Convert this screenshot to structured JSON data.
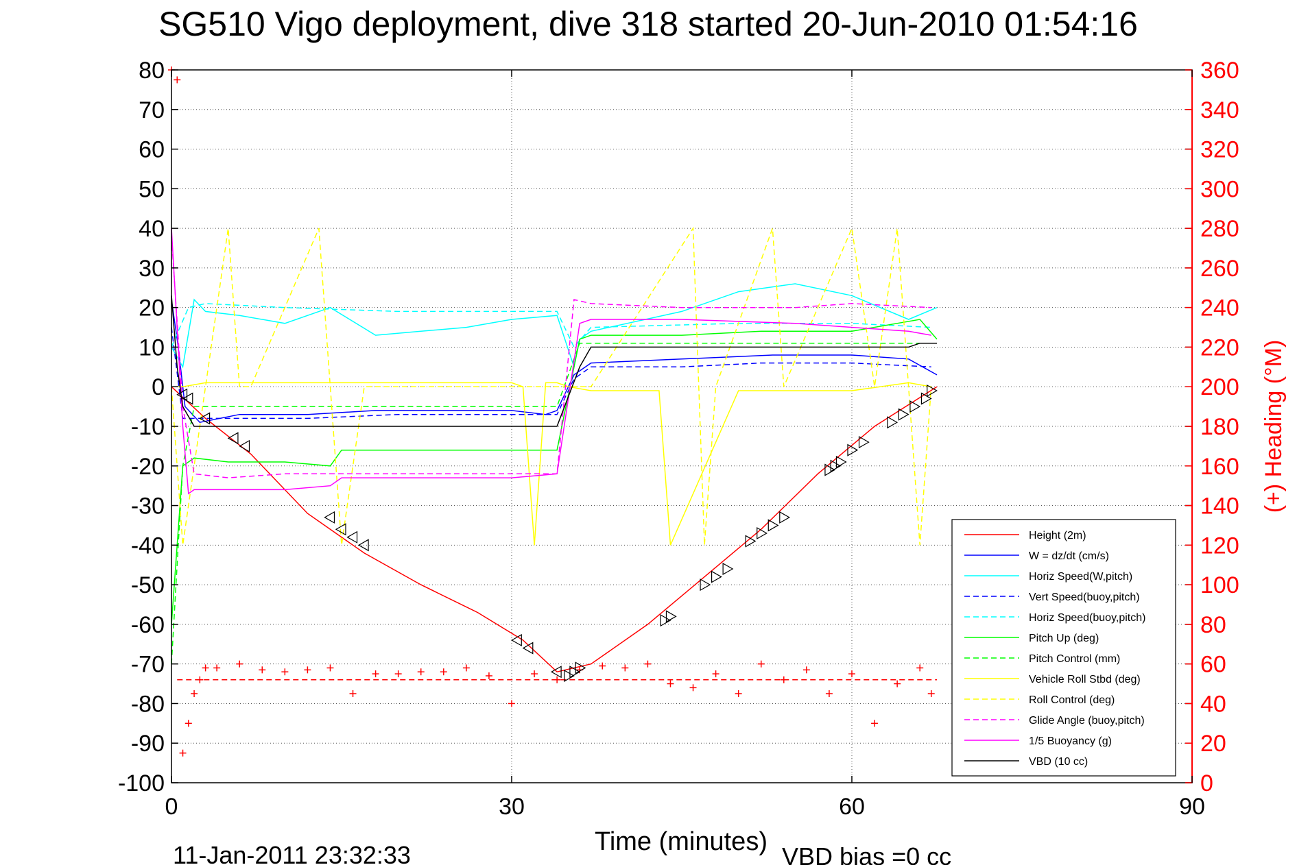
{
  "chart_data": {
    "type": "line",
    "title": "SG510 Vigo deployment, dive 318 started 20-Jun-2010 01:54:16",
    "xlabel": "Time (minutes)",
    "ylabel_right": "(+) Heading (°M)",
    "footer_left": "11-Jan-2011 23:32:33",
    "footer_right": "VBD bias =0 cc",
    "xlim": [
      0,
      90
    ],
    "ylim": [
      -100,
      80
    ],
    "ylim_right": [
      0,
      360
    ],
    "x_ticks": [
      0,
      30,
      60,
      90
    ],
    "y_ticks": [
      80,
      70,
      60,
      50,
      40,
      30,
      20,
      10,
      0,
      -10,
      -20,
      -30,
      -40,
      -50,
      -60,
      -70,
      -80,
      -90,
      -100
    ],
    "y_ticks_right": [
      360,
      340,
      320,
      300,
      280,
      260,
      240,
      220,
      200,
      180,
      160,
      140,
      120,
      100,
      80,
      60,
      40,
      20,
      0
    ],
    "grid": true,
    "legend_position": "lower-right",
    "colors": {
      "red": "#ff0000",
      "blue": "#0000ff",
      "cyan": "#00ffff",
      "green": "#00ff00",
      "yellow": "#ffff00",
      "magenta": "#ff00ff",
      "black": "#000000"
    },
    "series": [
      {
        "name": "Height (2m)",
        "color": "#ff0000",
        "dash": false,
        "x": [
          0,
          3,
          7,
          12,
          17,
          22,
          27,
          31,
          34,
          37,
          42,
          47,
          52,
          57,
          62,
          67.5
        ],
        "y": [
          0,
          -8,
          -17,
          -32,
          -42,
          -50,
          -57,
          -64,
          -72,
          -70,
          -60,
          -48,
          -36,
          -22,
          -10,
          0
        ]
      },
      {
        "name": "W = dz/dt (cm/s)",
        "color": "#0000ff",
        "dash": false,
        "x": [
          0,
          0.6,
          1.2,
          2.5,
          6,
          12,
          18,
          24,
          30,
          33,
          34,
          35.5,
          37,
          45,
          53,
          60,
          65,
          67.5
        ],
        "y": [
          22,
          10,
          -5,
          -9,
          -7,
          -7,
          -6,
          -6,
          -6,
          -7,
          -6,
          3,
          6,
          7,
          8,
          8,
          7,
          3
        ]
      },
      {
        "name": "Horiz Speed(W,pitch)",
        "color": "#00ffff",
        "dash": false,
        "x": [
          0,
          1,
          2,
          3,
          6,
          10,
          14,
          18,
          22,
          26,
          30,
          34,
          35.5,
          36,
          37,
          45,
          50,
          55,
          60,
          65,
          67.5
        ],
        "y": [
          10,
          5,
          22,
          19,
          18,
          16,
          20,
          13,
          14,
          15,
          17,
          18,
          5,
          12,
          14,
          19,
          24,
          26,
          23,
          17,
          20
        ]
      },
      {
        "name": "Vert Speed(buoy,pitch)",
        "color": "#0000ff",
        "dash": true,
        "x": [
          0,
          1,
          2,
          5,
          12,
          20,
          30,
          34,
          35.5,
          37,
          45,
          52,
          60,
          67
        ],
        "y": [
          15,
          -8,
          -8,
          -8,
          -8,
          -7,
          -7,
          -7,
          2,
          5,
          5,
          6,
          6,
          5
        ]
      },
      {
        "name": "Horiz Speed(buoy,pitch)",
        "color": "#00ffff",
        "dash": true,
        "x": [
          0,
          1.5,
          3,
          10,
          20,
          30,
          34,
          35.5,
          37,
          50,
          60,
          67
        ],
        "y": [
          10,
          20,
          21,
          20,
          19,
          19,
          19,
          10,
          15,
          16,
          16,
          15
        ]
      },
      {
        "name": "Pitch Up (deg)",
        "color": "#00ff00",
        "dash": false,
        "x": [
          0,
          1,
          2,
          5,
          10,
          14,
          15,
          20,
          30,
          34,
          36,
          37,
          45,
          52,
          60,
          66,
          67.5
        ],
        "y": [
          -60,
          -20,
          -18,
          -19,
          -19,
          -20,
          -16,
          -16,
          -16,
          -16,
          12,
          13,
          13,
          14,
          14,
          17,
          12
        ]
      },
      {
        "name": "Pitch Control (mm)",
        "color": "#00ff00",
        "dash": true,
        "x": [
          0,
          1,
          2,
          10,
          20,
          30,
          34,
          36,
          37,
          50,
          60,
          67
        ],
        "y": [
          -70,
          -20,
          -5,
          -5,
          -5,
          -5,
          -5,
          11,
          11,
          11,
          11,
          11
        ]
      },
      {
        "name": "Vehicle Roll Stbd (deg)",
        "color": "#ffff00",
        "dash": false,
        "x": [
          0,
          1,
          3,
          10,
          20,
          30,
          31,
          32,
          33,
          34,
          35,
          37,
          43,
          44,
          50,
          55,
          60,
          65,
          67
        ],
        "y": [
          0,
          0,
          1,
          1,
          1,
          1,
          0,
          -40,
          1,
          1,
          0,
          -1,
          -1,
          -40,
          -1,
          -1,
          -1,
          1,
          0
        ]
      },
      {
        "name": "Roll Control (deg)",
        "color": "#ffff00",
        "dash": true,
        "x": [
          0,
          1,
          3,
          5,
          6,
          7,
          13,
          14,
          15,
          17,
          30,
          33,
          37,
          46,
          47,
          48,
          53,
          54,
          60,
          62,
          64,
          66,
          67
        ],
        "y": [
          0,
          -40,
          0,
          40,
          0,
          0,
          40,
          0,
          -40,
          0,
          0,
          0,
          0,
          40,
          -40,
          0,
          40,
          0,
          40,
          0,
          40,
          -40,
          0
        ]
      },
      {
        "name": "Glide Angle (buoy,pitch)",
        "color": "#ff00ff",
        "dash": true,
        "x": [
          0,
          1,
          2,
          5,
          10,
          15,
          20,
          30,
          34,
          35.5,
          37,
          45,
          50,
          55,
          60,
          67
        ],
        "y": [
          38,
          -5,
          -22,
          -23,
          -22,
          -22,
          -22,
          -22,
          -22,
          22,
          21,
          20,
          20,
          20,
          21,
          20
        ]
      },
      {
        "name": "1/5 Buoyancy (g)",
        "color": "#ff00ff",
        "dash": false,
        "x": [
          0,
          1,
          1.5,
          2,
          5,
          10,
          14,
          15,
          20,
          30,
          34,
          36,
          37,
          45,
          55,
          65,
          67
        ],
        "y": [
          40,
          -10,
          -27,
          -26,
          -26,
          -26,
          -25,
          -23,
          -23,
          -23,
          -22,
          16,
          17,
          17,
          16,
          14,
          13
        ]
      },
      {
        "name": "VBD (10 cc)",
        "color": "#000000",
        "dash": false,
        "x": [
          0,
          0.5,
          1,
          2,
          5,
          10,
          20,
          30,
          34,
          36,
          37,
          45,
          55,
          62,
          65,
          66,
          67.5
        ],
        "y": [
          23,
          5,
          -5,
          -10,
          -10,
          -10,
          -10,
          -10,
          -10,
          5,
          10,
          10,
          10,
          10,
          10,
          11,
          11
        ]
      }
    ],
    "heading_points": {
      "name": "Heading",
      "color": "#ff0000",
      "x": [
        0,
        0.5,
        1,
        1.5,
        2,
        2.5,
        3,
        4,
        6,
        8,
        10,
        12,
        14,
        16,
        18,
        20,
        22,
        24,
        26,
        28,
        30,
        32,
        34,
        36,
        38,
        40,
        42,
        44,
        46,
        48,
        50,
        52,
        54,
        56,
        58,
        60,
        62,
        64,
        66,
        67
      ],
      "y": [
        360,
        355,
        15,
        30,
        45,
        52,
        58,
        58,
        60,
        57,
        56,
        57,
        58,
        45,
        55,
        55,
        56,
        56,
        58,
        54,
        40,
        55,
        52,
        57,
        59,
        58,
        60,
        50,
        48,
        55,
        45,
        60,
        52,
        57,
        45,
        55,
        30,
        50,
        58,
        45
      ]
    },
    "heading_mean": 52,
    "triangle_markers": {
      "x": [
        1,
        1.5,
        3,
        5.5,
        6.5,
        14,
        15,
        16,
        17,
        30.5,
        31.5,
        34,
        35,
        35.5,
        36,
        43.5,
        44,
        47,
        48,
        49,
        51,
        52,
        53,
        54,
        58,
        58.5,
        59,
        60,
        61,
        63.5,
        64.5,
        65.5,
        66.5,
        67
      ],
      "y": [
        -2,
        -3,
        -8,
        -13,
        -15,
        -33,
        -36,
        -38,
        -40,
        -64,
        -66,
        -72,
        -73,
        -72,
        -71,
        -59,
        -58,
        -50,
        -48,
        -46,
        -39,
        -37,
        -35,
        -33,
        -21,
        -20,
        -19,
        -16,
        -14,
        -9,
        -7,
        -5,
        -3,
        -1
      ]
    }
  }
}
